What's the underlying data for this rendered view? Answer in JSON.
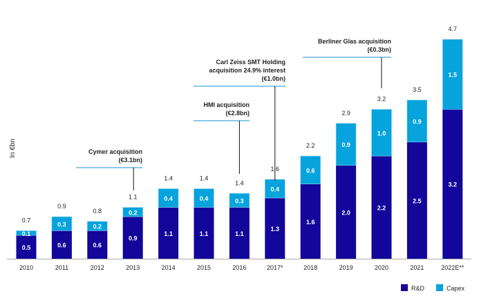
{
  "chart_data": {
    "type": "bar",
    "stacked": true,
    "ylabel": "In €bn",
    "xlabel": "",
    "categories": [
      "2010",
      "2011",
      "2012",
      "2013",
      "2014",
      "2015",
      "2016",
      "2017*",
      "2018",
      "2019",
      "2020",
      "2021",
      "2022E**"
    ],
    "series": [
      {
        "name": "R&D",
        "color": "#13069a",
        "values": [
          0.5,
          0.6,
          0.6,
          0.9,
          1.1,
          1.1,
          1.1,
          1.3,
          1.6,
          2.0,
          2.2,
          2.5,
          3.2
        ]
      },
      {
        "name": "Capex",
        "color": "#06a3dd",
        "values": [
          0.1,
          0.3,
          0.2,
          0.2,
          0.4,
          0.4,
          0.3,
          0.4,
          0.6,
          0.9,
          1.0,
          0.9,
          1.5
        ]
      }
    ],
    "totals": [
      "0.7",
      "0.9",
      "0.8",
      "1.1",
      "1.4",
      "1.4",
      "1.4",
      "1.6",
      "2.2",
      "2.9",
      "3.2",
      "3.5",
      "4.7"
    ],
    "rd_labels": [
      "0.5",
      "0.6",
      "0.6",
      "0.9",
      "1.1",
      "1.1",
      "1.1",
      "1.3",
      "1.6",
      "2.0",
      "2.2",
      "2.5",
      "3.2"
    ],
    "capex_labels": [
      "0.1",
      "0.3",
      "0.2",
      "0.2",
      "0.4",
      "0.4",
      "0.3",
      "0.4",
      "0.6",
      "0.9",
      "1.0",
      "0.9",
      "1.5"
    ],
    "ylim": [
      0,
      4.7
    ],
    "grid": false,
    "legend_position": "bottom-right",
    "annotations": [
      {
        "category": "2013",
        "lines": [
          "Cymer acquisition",
          "(€3.1bn)"
        ]
      },
      {
        "category": "2016",
        "lines": [
          "HMI acquisition",
          "(€2.8bn)"
        ]
      },
      {
        "category": "2017*",
        "lines": [
          "Carl Zeiss SMT Holding",
          "acquisition 24.9% interest",
          "(€1.0bn)"
        ]
      },
      {
        "category": "2020",
        "lines": [
          "Berliner Glas acquisition",
          "(€0.3bn)"
        ]
      }
    ]
  }
}
